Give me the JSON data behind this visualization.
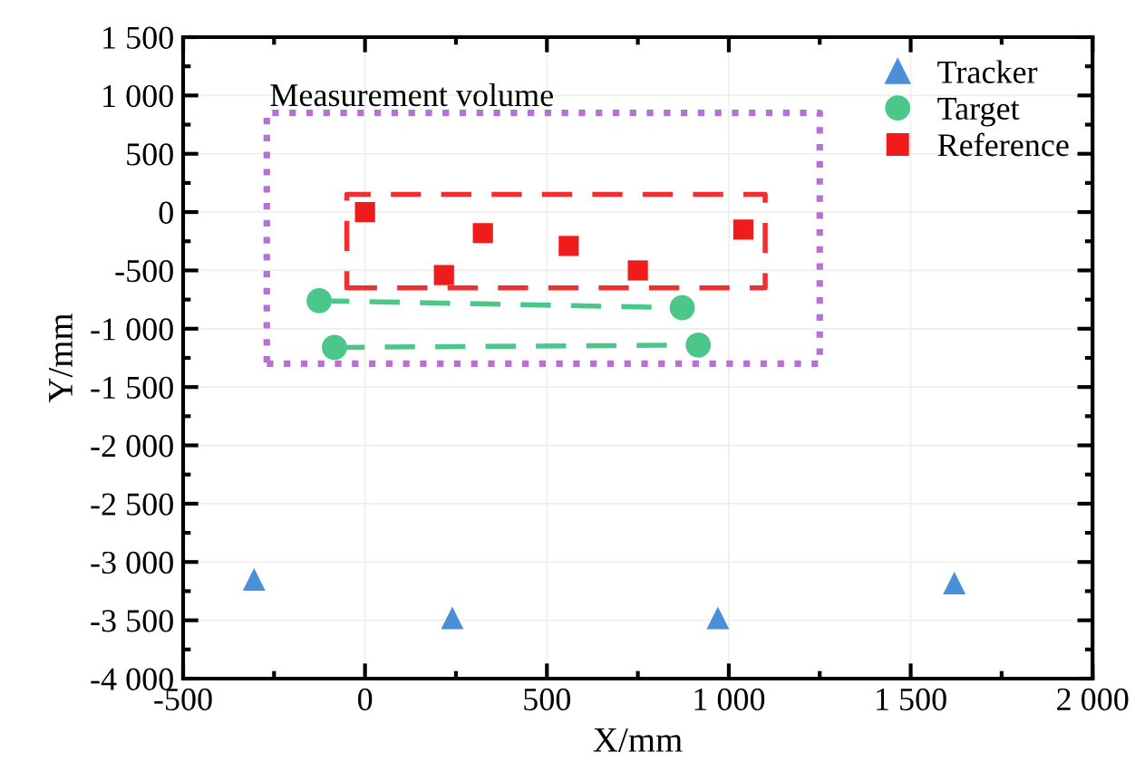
{
  "chart_data": {
    "type": "scatter",
    "xlabel": "X/mm",
    "ylabel": "Y/mm",
    "xlim": [
      -500,
      2000
    ],
    "ylim": [
      -4000,
      1500
    ],
    "xticks": [
      -500,
      0,
      500,
      {
        "value": 1000,
        "label": "1 000"
      },
      {
        "value": 1500,
        "label": "1 500"
      },
      {
        "value": 2000,
        "label": "2 000"
      }
    ],
    "yticks": [
      {
        "value": -4000,
        "label": "-4 000"
      },
      {
        "value": -3500,
        "label": "-3 500"
      },
      {
        "value": -3000,
        "label": "-3 000"
      },
      {
        "value": -2500,
        "label": "-2 500"
      },
      {
        "value": -2000,
        "label": "-2 000"
      },
      {
        "value": -1500,
        "label": "-1 500"
      },
      {
        "value": -1000,
        "label": "-1 000"
      },
      -500,
      0,
      500,
      {
        "value": 1000,
        "label": "1 000"
      },
      {
        "value": 1500,
        "label": "1 500"
      }
    ],
    "grid": true,
    "legend": "top right",
    "annotations": [
      "Measurement volume"
    ],
    "series": [
      {
        "name": "Tracker",
        "marker": "triangle",
        "color": "#4a90d9",
        "x": [
          -305,
          240,
          970,
          1620
        ],
        "values": [
          -3150,
          -3480,
          -3480,
          -3180
        ]
      },
      {
        "name": "Target",
        "type": "line",
        "marker": "circle",
        "line_style": "dashed",
        "color": "#4cc78a",
        "x": [
          -126,
          872
        ],
        "values": [
          -760,
          -820
        ]
      },
      {
        "type": "line",
        "marker": "circle",
        "line_style": "dashed",
        "color": "#4cc78a",
        "x": [
          -84,
          916
        ],
        "values": [
          -1160,
          -1140
        ]
      },
      {
        "name": "Reference",
        "marker": "square",
        "color": "#f01c1c",
        "x": [
          0,
          217,
          324,
          560,
          750,
          1040
        ],
        "values": [
          0,
          -540,
          -180,
          -290,
          -500,
          -150
        ]
      }
    ]
  }
}
